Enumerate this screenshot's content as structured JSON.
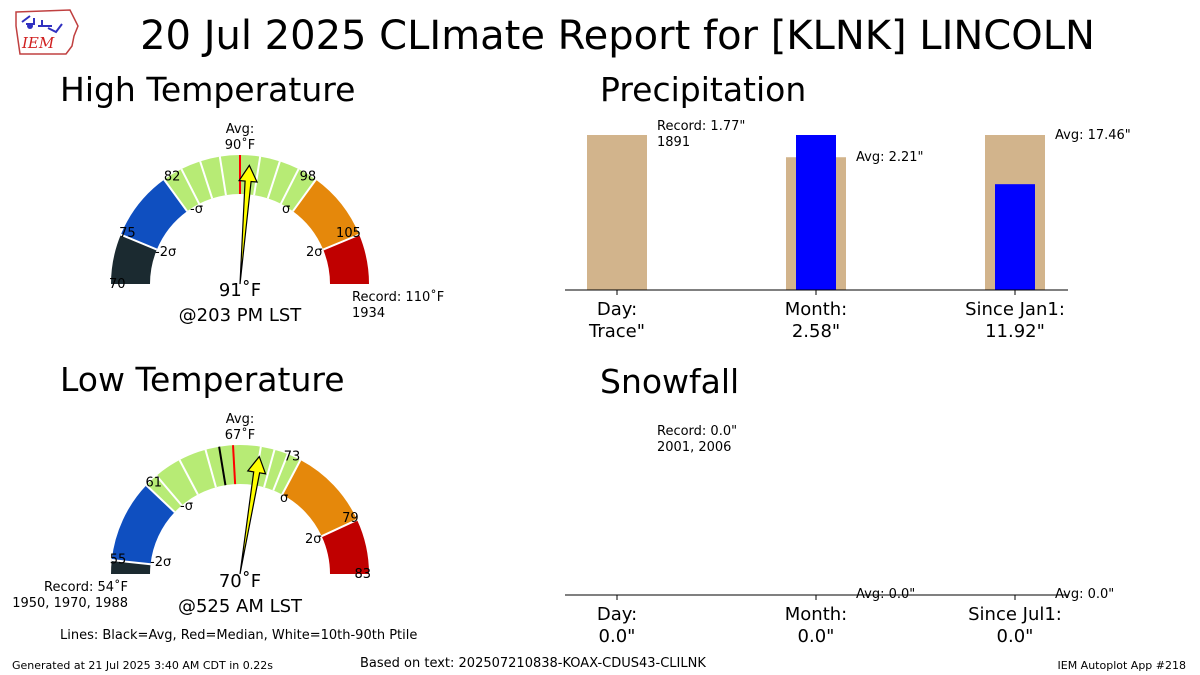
{
  "page": {
    "title": "20 Jul 2025 CLImate Report for [KLNK] LINCOLN",
    "generated": "Generated at 21 Jul 2025 3:40 AM CDT in 0.22s",
    "based_on": "Based on text: 202507210838-KOAX-CDUS43-CLILNK",
    "app": "IEM Autoplot App #218",
    "lines_legend": "Lines: Black=Avg, Red=Median, White=10th-90th Ptile",
    "logo_text": "IEM"
  },
  "colors": {
    "band_below_2sigma": "#1b2a30",
    "band_2sigma": "#0f4fc0",
    "band_sigma": "#b7eb75",
    "band_plus_sigma": "#e5880b",
    "band_above_2sigma": "#c00000",
    "avg_line": "#000000",
    "median_line": "#ff0000",
    "ptile_line": "#ffffff",
    "needle": "#ffff00",
    "precip_bar_avg": "#d2b48c",
    "precip_bar_obs": "#0000ff"
  },
  "chart_data": [
    {
      "type": "gauge",
      "title": "High Temperature",
      "range": [
        70,
        110
      ],
      "ticks": [
        70,
        75,
        82,
        98,
        105
      ],
      "sigma_labels": [
        "-2σ",
        "-σ",
        "σ",
        "2σ"
      ],
      "bands": [
        {
          "from": 70,
          "to": 75,
          "color": "#1b2a30"
        },
        {
          "from": 75,
          "to": 82,
          "color": "#0f4fc0"
        },
        {
          "from": 82,
          "to": 98,
          "color": "#b7eb75"
        },
        {
          "from": 98,
          "to": 105,
          "color": "#e5880b"
        },
        {
          "from": 105,
          "to": 110,
          "color": "#c00000"
        }
      ],
      "avg": 90,
      "median": 90,
      "ptile_lines": [
        84,
        86,
        88,
        92,
        94,
        96
      ],
      "observed": 91,
      "avg_label": "Avg:",
      "avg_value_label": "90˚F",
      "observed_label": "91˚F",
      "time_label": "@203 PM LST",
      "record_label": "Record: 110˚F",
      "record_years": "1934"
    },
    {
      "type": "gauge",
      "title": "Low Temperature",
      "range": [
        54,
        83
      ],
      "ticks": [
        55,
        61,
        73,
        79,
        83
      ],
      "sigma_labels": [
        "-2σ",
        "-σ",
        "σ",
        "2σ"
      ],
      "bands": [
        {
          "from": 54,
          "to": 55,
          "color": "#1b2a30"
        },
        {
          "from": 55,
          "to": 61,
          "color": "#0f4fc0"
        },
        {
          "from": 61,
          "to": 73,
          "color": "#b7eb75"
        },
        {
          "from": 73,
          "to": 79,
          "color": "#e5880b"
        },
        {
          "from": 79,
          "to": 83,
          "color": "#c00000"
        }
      ],
      "avg": 67,
      "median": 68,
      "ptile_lines": [
        62,
        64,
        66,
        70,
        71,
        72
      ],
      "observed": 70,
      "avg_label": "Avg:",
      "avg_value_label": "67˚F",
      "observed_label": "70˚F",
      "time_label": "@525 AM LST",
      "record_label": "Record: 54˚F",
      "record_years": "1950, 1970, 1988"
    },
    {
      "type": "bar",
      "title": "Precipitation",
      "units": "inches",
      "categories": [
        "Day:",
        "Month:",
        "Since Jan1:"
      ],
      "observed_labels": [
        "Trace\"",
        "2.58\"",
        "11.92\""
      ],
      "series": [
        {
          "values": [
            1.77,
            2.21,
            17.46
          ]
        },
        {
          "values": [
            0.0001,
            2.58,
            11.92
          ]
        }
      ],
      "bar_value_labels": [
        "Record: 1.77\"",
        "Avg: 2.21\"",
        "Avg: 17.46\""
      ],
      "record_years": "1891",
      "ymax": [
        1.77,
        2.58,
        17.46
      ]
    },
    {
      "type": "bar",
      "title": "Snowfall",
      "units": "inches",
      "categories": [
        "Day:",
        "Month:",
        "Since Jul1:"
      ],
      "observed_labels": [
        "0.0\"",
        "0.0\"",
        "0.0\""
      ],
      "series": [
        {
          "values": [
            0.0,
            0.0,
            0.0
          ]
        },
        {
          "values": [
            0.0,
            0.0,
            0.0
          ]
        }
      ],
      "bar_value_labels": [
        "Record: 0.0\"",
        "Avg: 0.0\"",
        "Avg: 0.0\""
      ],
      "record_years": "2001, 2006"
    }
  ]
}
